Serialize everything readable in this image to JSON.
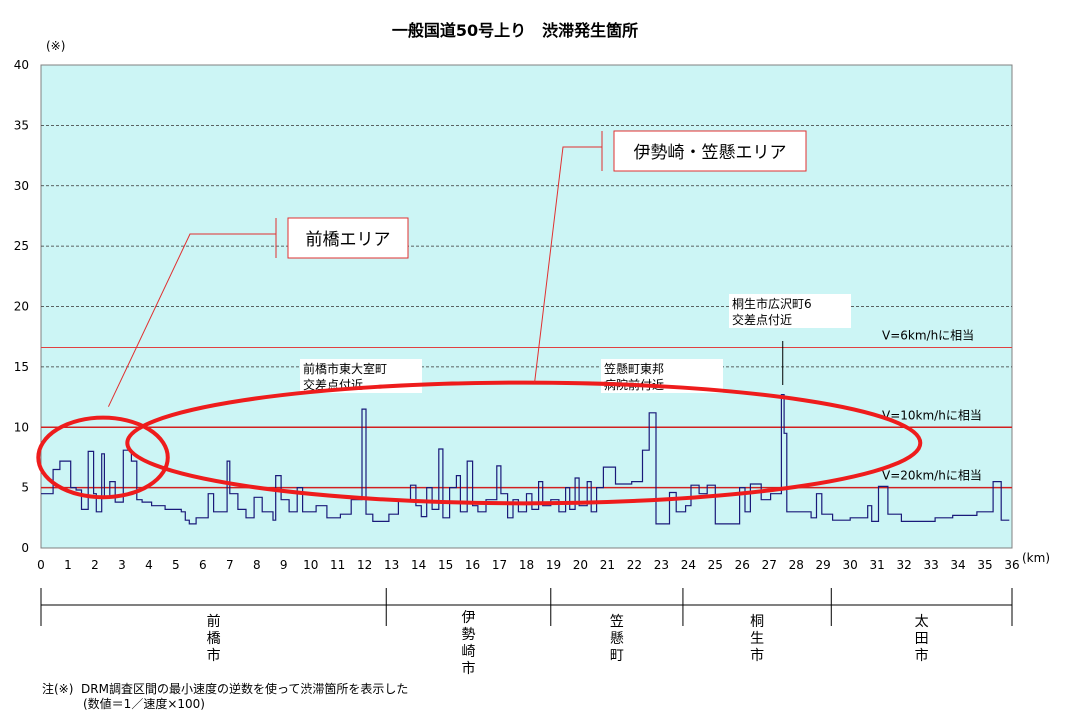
{
  "chart_data": {
    "type": "line",
    "title": "一般国道50号上り　渋滞発生箇所",
    "y_unit": "(※)",
    "x_unit": "(km)",
    "xlim": [
      0,
      36
    ],
    "ylim": [
      0,
      40
    ],
    "x_ticks": [
      "0",
      "1",
      "2",
      "3",
      "4",
      "5",
      "6",
      "7",
      "8",
      "9",
      "10",
      "11",
      "12",
      "13",
      "14",
      "15",
      "16",
      "17",
      "18",
      "19",
      "20",
      "21",
      "22",
      "23",
      "24",
      "25",
      "26",
      "27",
      "28",
      "29",
      "30",
      "31",
      "32",
      "33",
      "34",
      "35",
      "36"
    ],
    "y_ticks": [
      "0",
      "5",
      "10",
      "15",
      "20",
      "25",
      "30",
      "35",
      "40"
    ],
    "grid": true,
    "background": "#ccf5f5",
    "series": [
      {
        "color": "#1a1a7a",
        "points": [
          [
            0,
            4.5
          ],
          [
            0.45,
            4.5
          ],
          [
            0.45,
            6.5
          ],
          [
            0.7,
            6.5
          ],
          [
            0.7,
            7.2
          ],
          [
            1.1,
            7.2
          ],
          [
            1.1,
            5.0
          ],
          [
            1.3,
            5.0
          ],
          [
            1.3,
            4.8
          ],
          [
            1.5,
            4.8
          ],
          [
            1.5,
            3.2
          ],
          [
            1.75,
            3.2
          ],
          [
            1.75,
            8.0
          ],
          [
            1.95,
            8.0
          ],
          [
            1.95,
            4.5
          ],
          [
            2.05,
            4.5
          ],
          [
            2.05,
            3.0
          ],
          [
            2.25,
            3.0
          ],
          [
            2.25,
            7.8
          ],
          [
            2.35,
            7.8
          ],
          [
            2.35,
            4.2
          ],
          [
            2.55,
            4.2
          ],
          [
            2.55,
            5.5
          ],
          [
            2.75,
            5.5
          ],
          [
            2.75,
            3.8
          ],
          [
            3.05,
            3.8
          ],
          [
            3.05,
            8.1
          ],
          [
            3.35,
            8.1
          ],
          [
            3.35,
            7.2
          ],
          [
            3.55,
            7.2
          ],
          [
            3.55,
            4.0
          ],
          [
            3.75,
            4.0
          ],
          [
            3.75,
            3.8
          ],
          [
            4.1,
            3.8
          ],
          [
            4.1,
            3.5
          ],
          [
            4.6,
            3.5
          ],
          [
            4.6,
            3.2
          ],
          [
            5.2,
            3.2
          ],
          [
            5.2,
            3.0
          ],
          [
            5.35,
            3.0
          ],
          [
            5.35,
            2.3
          ],
          [
            5.5,
            2.3
          ],
          [
            5.5,
            2.0
          ],
          [
            5.75,
            2.0
          ],
          [
            5.75,
            2.5
          ],
          [
            6.2,
            2.5
          ],
          [
            6.2,
            4.5
          ],
          [
            6.4,
            4.5
          ],
          [
            6.4,
            3.0
          ],
          [
            6.9,
            3.0
          ],
          [
            6.9,
            7.2
          ],
          [
            7.0,
            7.2
          ],
          [
            7.0,
            4.5
          ],
          [
            7.3,
            4.5
          ],
          [
            7.3,
            3.2
          ],
          [
            7.6,
            3.2
          ],
          [
            7.6,
            2.5
          ],
          [
            7.9,
            2.5
          ],
          [
            7.9,
            4.2
          ],
          [
            8.2,
            4.2
          ],
          [
            8.2,
            3.0
          ],
          [
            8.6,
            3.0
          ],
          [
            8.6,
            2.3
          ],
          [
            8.7,
            2.3
          ],
          [
            8.7,
            6.0
          ],
          [
            8.9,
            6.0
          ],
          [
            8.9,
            4.0
          ],
          [
            9.2,
            4.0
          ],
          [
            9.2,
            3.0
          ],
          [
            9.5,
            3.0
          ],
          [
            9.5,
            5.0
          ],
          [
            9.7,
            5.0
          ],
          [
            9.7,
            3.0
          ],
          [
            10.2,
            3.0
          ],
          [
            10.2,
            3.5
          ],
          [
            10.6,
            3.5
          ],
          [
            10.6,
            2.5
          ],
          [
            11.1,
            2.5
          ],
          [
            11.1,
            2.8
          ],
          [
            11.5,
            2.8
          ],
          [
            11.5,
            4.0
          ],
          [
            11.9,
            4.0
          ],
          [
            11.9,
            11.5
          ],
          [
            12.05,
            11.5
          ],
          [
            12.05,
            2.8
          ],
          [
            12.3,
            2.8
          ],
          [
            12.3,
            2.2
          ],
          [
            12.9,
            2.2
          ],
          [
            12.9,
            2.8
          ],
          [
            13.25,
            2.8
          ],
          [
            13.25,
            4.0
          ],
          [
            13.7,
            4.0
          ],
          [
            13.7,
            5.2
          ],
          [
            13.9,
            5.2
          ],
          [
            13.9,
            3.5
          ],
          [
            14.1,
            3.5
          ],
          [
            14.1,
            2.6
          ],
          [
            14.3,
            2.6
          ],
          [
            14.3,
            5.0
          ],
          [
            14.5,
            5.0
          ],
          [
            14.5,
            3.2
          ],
          [
            14.75,
            3.2
          ],
          [
            14.75,
            8.2
          ],
          [
            14.9,
            8.2
          ],
          [
            14.9,
            2.5
          ],
          [
            15.15,
            2.5
          ],
          [
            15.15,
            5.0
          ],
          [
            15.4,
            5.0
          ],
          [
            15.4,
            6.0
          ],
          [
            15.55,
            6.0
          ],
          [
            15.55,
            3.0
          ],
          [
            15.8,
            3.0
          ],
          [
            15.8,
            7.2
          ],
          [
            16.0,
            7.2
          ],
          [
            16.0,
            3.5
          ],
          [
            16.2,
            3.5
          ],
          [
            16.2,
            3.0
          ],
          [
            16.5,
            3.0
          ],
          [
            16.5,
            4.0
          ],
          [
            16.9,
            4.0
          ],
          [
            16.9,
            6.8
          ],
          [
            17.05,
            6.8
          ],
          [
            17.05,
            4.5
          ],
          [
            17.3,
            4.5
          ],
          [
            17.3,
            2.5
          ],
          [
            17.5,
            2.5
          ],
          [
            17.5,
            4.0
          ],
          [
            17.7,
            4.0
          ],
          [
            17.7,
            3.0
          ],
          [
            18.0,
            3.0
          ],
          [
            18.0,
            4.5
          ],
          [
            18.2,
            4.5
          ],
          [
            18.2,
            3.2
          ],
          [
            18.45,
            3.2
          ],
          [
            18.45,
            5.5
          ],
          [
            18.6,
            5.5
          ],
          [
            18.6,
            3.5
          ],
          [
            18.9,
            3.5
          ],
          [
            18.9,
            4.0
          ],
          [
            19.2,
            4.0
          ],
          [
            19.2,
            3.0
          ],
          [
            19.45,
            3.0
          ],
          [
            19.45,
            5.0
          ],
          [
            19.6,
            5.0
          ],
          [
            19.6,
            3.2
          ],
          [
            19.8,
            3.2
          ],
          [
            19.8,
            5.8
          ],
          [
            19.95,
            5.8
          ],
          [
            19.95,
            3.5
          ],
          [
            20.25,
            3.5
          ],
          [
            20.25,
            5.5
          ],
          [
            20.4,
            5.5
          ],
          [
            20.4,
            3.0
          ],
          [
            20.6,
            3.0
          ],
          [
            20.6,
            5.0
          ],
          [
            20.85,
            5.0
          ],
          [
            20.85,
            6.7
          ],
          [
            21.3,
            6.7
          ],
          [
            21.3,
            5.3
          ],
          [
            21.9,
            5.3
          ],
          [
            21.9,
            5.5
          ],
          [
            22.3,
            5.5
          ],
          [
            22.3,
            8.1
          ],
          [
            22.55,
            8.1
          ],
          [
            22.55,
            11.2
          ],
          [
            22.8,
            11.2
          ],
          [
            22.8,
            2.0
          ],
          [
            23.3,
            2.0
          ],
          [
            23.3,
            4.6
          ],
          [
            23.55,
            4.6
          ],
          [
            23.55,
            3.0
          ],
          [
            23.9,
            3.0
          ],
          [
            23.9,
            3.5
          ],
          [
            24.1,
            3.5
          ],
          [
            24.1,
            5.2
          ],
          [
            24.4,
            5.2
          ],
          [
            24.4,
            4.5
          ],
          [
            24.7,
            4.5
          ],
          [
            24.7,
            5.2
          ],
          [
            25.0,
            5.2
          ],
          [
            25.0,
            2.0
          ],
          [
            25.9,
            2.0
          ],
          [
            25.9,
            5.0
          ],
          [
            26.1,
            5.0
          ],
          [
            26.1,
            3.0
          ],
          [
            26.3,
            3.0
          ],
          [
            26.3,
            5.3
          ],
          [
            26.7,
            5.3
          ],
          [
            26.7,
            4.0
          ],
          [
            27.05,
            4.0
          ],
          [
            27.05,
            4.5
          ],
          [
            27.45,
            4.5
          ],
          [
            27.45,
            12.7
          ],
          [
            27.55,
            12.7
          ],
          [
            27.55,
            9.5
          ],
          [
            27.65,
            9.5
          ],
          [
            27.65,
            3.0
          ],
          [
            28.55,
            3.0
          ],
          [
            28.55,
            2.5
          ],
          [
            28.75,
            2.5
          ],
          [
            28.75,
            4.5
          ],
          [
            28.95,
            4.5
          ],
          [
            28.95,
            2.8
          ],
          [
            29.35,
            2.8
          ],
          [
            29.35,
            2.3
          ],
          [
            30.0,
            2.3
          ],
          [
            30.0,
            2.5
          ],
          [
            30.65,
            2.5
          ],
          [
            30.65,
            3.5
          ],
          [
            30.8,
            3.5
          ],
          [
            30.8,
            2.2
          ],
          [
            31.05,
            2.2
          ],
          [
            31.05,
            5.1
          ],
          [
            31.4,
            5.1
          ],
          [
            31.4,
            2.8
          ],
          [
            31.9,
            2.8
          ],
          [
            31.9,
            2.2
          ],
          [
            33.15,
            2.2
          ],
          [
            33.15,
            2.5
          ],
          [
            33.8,
            2.5
          ],
          [
            33.8,
            2.7
          ],
          [
            34.7,
            2.7
          ],
          [
            34.7,
            3.0
          ],
          [
            35.3,
            3.0
          ],
          [
            35.3,
            5.5
          ],
          [
            35.6,
            5.5
          ],
          [
            35.6,
            2.3
          ],
          [
            35.9,
            2.3
          ]
        ]
      }
    ],
    "reference_lines": [
      {
        "y": 16.6,
        "label": "V=6km/hに相当",
        "color": "#e04040"
      },
      {
        "y": 10.0,
        "label": "V=10km/hに相当",
        "color": "#d22020"
      },
      {
        "y": 5.0,
        "label": "V=20km/hに相当",
        "color": "#d22020"
      }
    ],
    "spot_labels": [
      {
        "text": [
          "前橋市東大室町",
          "交差点付近"
        ],
        "x": 12.0,
        "y": 11.5
      },
      {
        "text": [
          "笠懸町東邦",
          "病院前付近"
        ],
        "x": 22.6,
        "y": 11.2
      },
      {
        "text": [
          "桐生市広沢町6",
          "交差点付近"
        ],
        "x": 27.5,
        "y": 12.7
      }
    ],
    "areas": [
      {
        "label": "前橋エリア",
        "cx": 2.3,
        "cy": 7.5,
        "rx": 2.4,
        "ry": 3.3,
        "leader_to": [
          2.5,
          11.7
        ]
      },
      {
        "label": "伊勢崎・笠懸エリア",
        "cx": 17.9,
        "cy": 8.7,
        "rx": 14.7,
        "ry": 5.0,
        "leader_to": [
          18.3,
          13.7
        ]
      }
    ],
    "regions": [
      {
        "label": "前橋市",
        "from": 0,
        "to": 12.8
      },
      {
        "label": "伊勢崎市",
        "from": 12.8,
        "to": 18.9
      },
      {
        "label": "笠懸町",
        "from": 18.9,
        "to": 23.8
      },
      {
        "label": "桐生市",
        "from": 23.8,
        "to": 29.3
      },
      {
        "label": "太田市",
        "from": 29.3,
        "to": 36
      }
    ],
    "footnote": {
      "line1": "注(※)  DRM調査区間の最小速度の逆数を使って渋滞箇所を表示した",
      "line2": "(数値＝1／速度×100)"
    }
  }
}
